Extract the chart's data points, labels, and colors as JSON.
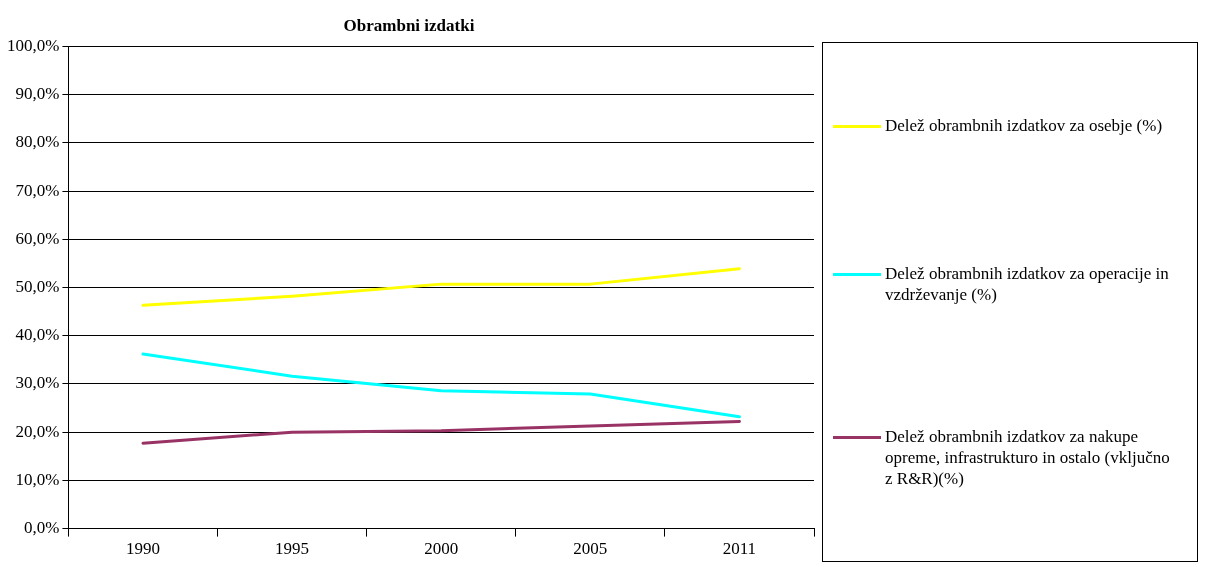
{
  "chart_data": {
    "type": "line",
    "title": "Obrambni izdatki",
    "categories": [
      "1990",
      "1995",
      "2000",
      "2005",
      "2011"
    ],
    "series": [
      {
        "name": "Delež obrambnih izdatkov za osebje (%)",
        "color": "#ffff00",
        "values": [
          46.3,
          48.2,
          50.7,
          50.7,
          53.9
        ]
      },
      {
        "name": "Delež obrambnih izdatkov za operacije in vzdrževanje (%)",
        "color": "#00ffff",
        "values": [
          36.2,
          31.6,
          28.6,
          27.9,
          23.2
        ]
      },
      {
        "name": "Delež obrambnih izdatkov za nakupe opreme, infrastrukturo in ostalo (vključno z R&R)(%)",
        "color": "#993366",
        "values": [
          17.7,
          20.0,
          20.3,
          21.3,
          22.2
        ]
      }
    ],
    "ylim": [
      0,
      100
    ],
    "yticks": [
      {
        "value": 0,
        "label": "0,0%"
      },
      {
        "value": 10,
        "label": "10,0%"
      },
      {
        "value": 20,
        "label": "20,0%"
      },
      {
        "value": 30,
        "label": "30,0%"
      },
      {
        "value": 40,
        "label": "40,0%"
      },
      {
        "value": 50,
        "label": "50,0%"
      },
      {
        "value": 60,
        "label": "60,0%"
      },
      {
        "value": 70,
        "label": "70,0%"
      },
      {
        "value": 80,
        "label": "80,0%"
      },
      {
        "value": 90,
        "label": "90,0%"
      },
      {
        "value": 100,
        "label": "100,0%"
      }
    ],
    "grid": "y",
    "legend": "right",
    "marker": "none",
    "line_style": "solid"
  }
}
